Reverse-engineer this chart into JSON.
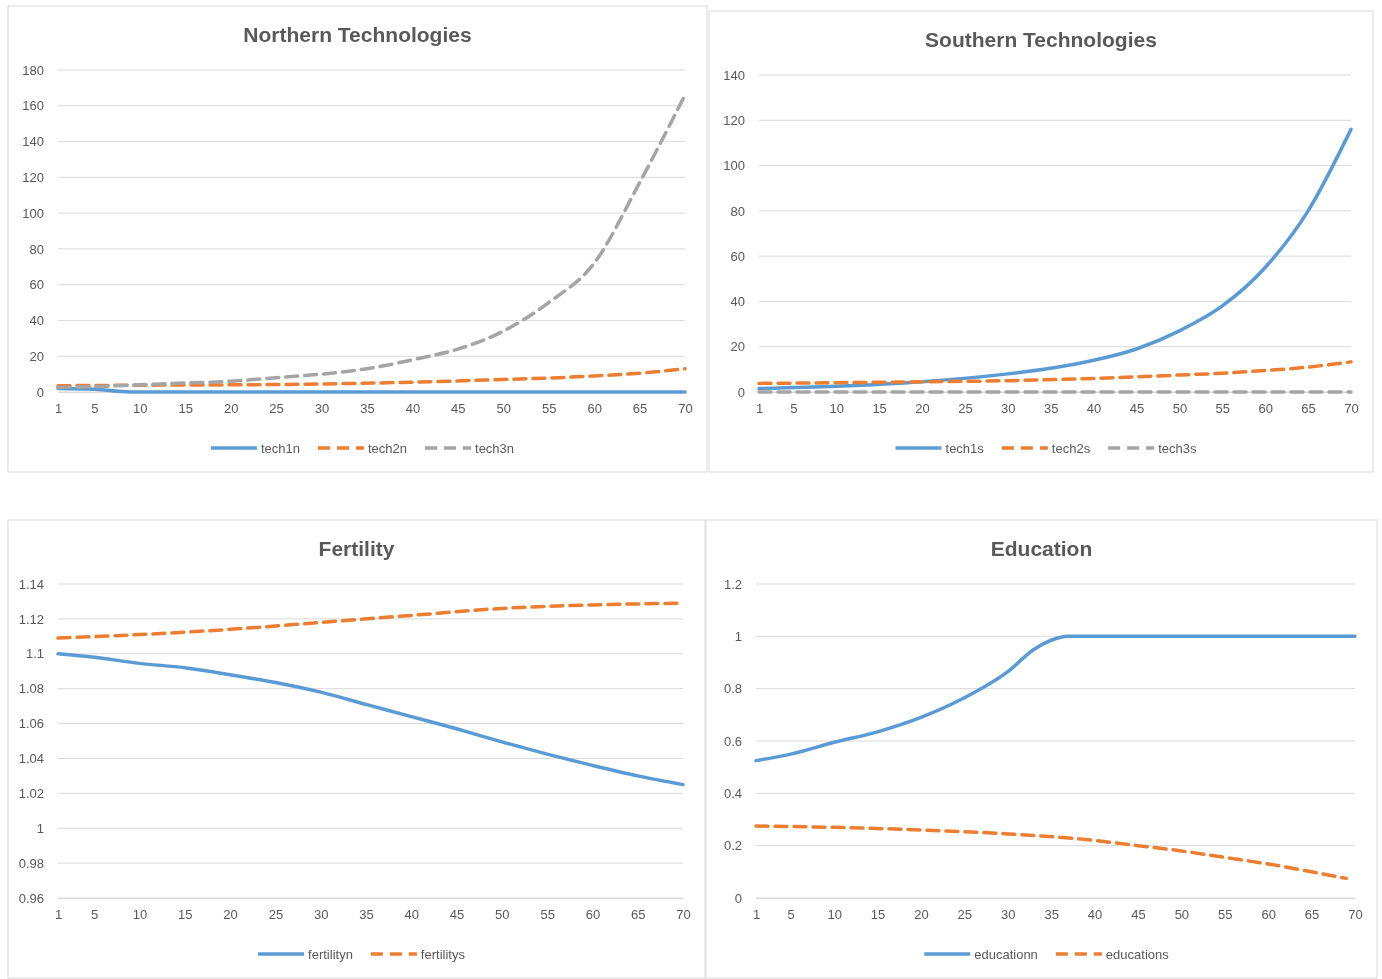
{
  "chart_data": [
    {
      "type": "line",
      "title": "Northern Technologies",
      "xlim": [
        1,
        70
      ],
      "xticks": [
        1,
        5,
        10,
        15,
        20,
        25,
        30,
        35,
        40,
        45,
        50,
        55,
        60,
        65,
        70
      ],
      "ylim": [
        0,
        180
      ],
      "yticks": [
        0,
        20,
        40,
        60,
        80,
        100,
        120,
        140,
        160,
        180
      ],
      "grid": "y",
      "legend": "bottom",
      "marker": "none",
      "series": [
        {
          "name": "tech1n",
          "color": "#5b9bd5",
          "line_style": "solid",
          "x": [
            1,
            5,
            9,
            70
          ],
          "values": [
            2,
            1.5,
            0,
            0
          ]
        },
        {
          "name": "tech2n",
          "color": "#ed7d31",
          "line_style": "dashed",
          "x": [
            1,
            10,
            20,
            30,
            40,
            50,
            55,
            60,
            65,
            70
          ],
          "values": [
            3.5,
            3.8,
            4,
            4.5,
            5.5,
            7,
            7.8,
            9,
            10.5,
            13
          ]
        },
        {
          "name": "tech3n",
          "color": "#a5a5a5",
          "line_style": "dashed",
          "x": [
            1,
            5,
            10,
            15,
            20,
            25,
            30,
            35,
            40,
            45,
            50,
            55,
            60,
            65,
            70
          ],
          "values": [
            2.5,
            3,
            4,
            5,
            6,
            8,
            10,
            13,
            18,
            24,
            34,
            50,
            72,
            117,
            166
          ]
        }
      ]
    },
    {
      "type": "line",
      "title": "Southern Technologies",
      "xlim": [
        1,
        70
      ],
      "xticks": [
        1,
        5,
        10,
        15,
        20,
        25,
        30,
        35,
        40,
        45,
        50,
        55,
        60,
        65,
        70
      ],
      "ylim": [
        0,
        140
      ],
      "yticks": [
        0,
        20,
        40,
        60,
        80,
        100,
        120,
        140
      ],
      "grid": "y",
      "legend": "bottom",
      "marker": "none",
      "series": [
        {
          "name": "tech1s",
          "color": "#5b9bd5",
          "line_style": "solid",
          "x": [
            1,
            10,
            20,
            30,
            35,
            40,
            45,
            50,
            55,
            60,
            65,
            70
          ],
          "values": [
            1.5,
            2.5,
            4.5,
            8,
            10.5,
            14,
            19,
            27,
            38,
            55,
            80,
            116
          ]
        },
        {
          "name": "tech2s",
          "color": "#ed7d31",
          "line_style": "dashed",
          "x": [
            1,
            20,
            30,
            40,
            50,
            55,
            60,
            65,
            70
          ],
          "values": [
            3.8,
            4.5,
            5,
            6,
            7.5,
            8.3,
            9.5,
            11,
            13.3
          ]
        },
        {
          "name": "tech3s",
          "color": "#a5a5a5",
          "line_style": "dashed",
          "x": [
            1,
            70
          ],
          "values": [
            0,
            0
          ]
        }
      ]
    },
    {
      "type": "line",
      "title": "Fertility",
      "xlim": [
        1,
        70
      ],
      "xticks": [
        1,
        5,
        10,
        15,
        20,
        25,
        30,
        35,
        40,
        45,
        50,
        55,
        60,
        65,
        70
      ],
      "ylim": [
        0.96,
        1.14
      ],
      "yticks": [
        0.96,
        0.98,
        1,
        1.02,
        1.04,
        1.06,
        1.08,
        1.1,
        1.12,
        1.14
      ],
      "grid": "y",
      "legend": "bottom",
      "marker": "none",
      "series": [
        {
          "name": "fertilityn",
          "color": "#5b9bd5",
          "line_style": "solid",
          "x": [
            1,
            5,
            10,
            15,
            20,
            25,
            30,
            35,
            40,
            45,
            50,
            55,
            60,
            65,
            70
          ],
          "values": [
            1.1,
            1.098,
            1.0945,
            1.092,
            1.088,
            1.0835,
            1.078,
            1.071,
            1.064,
            1.057,
            1.0495,
            1.0425,
            1.036,
            1.03,
            1.025
          ]
        },
        {
          "name": "fertilitys",
          "color": "#ed7d31",
          "line_style": "dashed",
          "x": [
            1,
            10,
            20,
            30,
            40,
            50,
            60,
            70
          ],
          "values": [
            1.109,
            1.111,
            1.114,
            1.118,
            1.122,
            1.126,
            1.128,
            1.129
          ]
        }
      ]
    },
    {
      "type": "line",
      "title": "Education",
      "xlim": [
        1,
        70
      ],
      "xticks": [
        1,
        5,
        10,
        15,
        20,
        25,
        30,
        35,
        40,
        45,
        50,
        55,
        60,
        65,
        70
      ],
      "ylim": [
        0,
        1.2
      ],
      "yticks": [
        0,
        0.2,
        0.4,
        0.6,
        0.8,
        1,
        1.2
      ],
      "grid": "y",
      "legend": "bottom",
      "marker": "none",
      "series": [
        {
          "name": "educationn",
          "color": "#5b9bd5",
          "line_style": "solid",
          "x": [
            1,
            5,
            10,
            15,
            20,
            25,
            30,
            33,
            35,
            37,
            70
          ],
          "values": [
            0.525,
            0.55,
            0.595,
            0.635,
            0.69,
            0.765,
            0.865,
            0.95,
            0.985,
            1,
            1
          ]
        },
        {
          "name": "educations",
          "color": "#ed7d31",
          "line_style": "dashed",
          "x": [
            1,
            10,
            20,
            30,
            40,
            45,
            50,
            55,
            60,
            65,
            69
          ],
          "values": [
            0.275,
            0.27,
            0.26,
            0.245,
            0.22,
            0.2,
            0.18,
            0.155,
            0.13,
            0.1,
            0.075
          ]
        }
      ]
    }
  ]
}
